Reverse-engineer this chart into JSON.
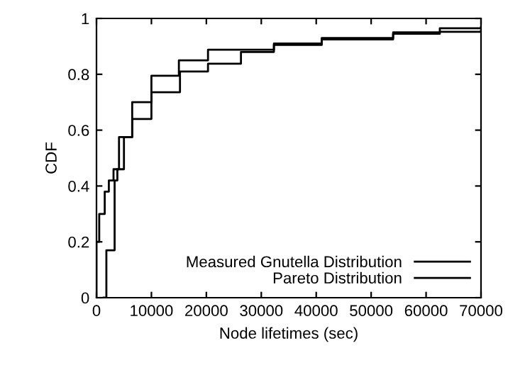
{
  "chart_data": {
    "type": "step",
    "xlabel": "Node lifetimes (sec)",
    "ylabel": "CDF",
    "series": [
      {
        "name": "Measured Gnutella Distribution",
        "color": "#000000",
        "x": [
          0,
          0,
          500,
          1500,
          2250,
          3100,
          4100,
          6500,
          10000,
          15000,
          20300,
          32300,
          41000,
          54000,
          62500,
          70000
        ],
        "values": [
          0,
          0.2,
          0.3,
          0.38,
          0.42,
          0.46,
          0.575,
          0.7,
          0.795,
          0.85,
          0.888,
          0.91,
          0.93,
          0.95,
          0.965,
          0.97
        ]
      },
      {
        "name": "Pareto Distribution",
        "color": "#000000",
        "x": [
          1300,
          1800,
          3300,
          3800,
          5000,
          6500,
          10000,
          15200,
          20300,
          26300,
          32300,
          41000,
          54000,
          62500,
          70000
        ],
        "values": [
          0,
          0.17,
          0.42,
          0.46,
          0.575,
          0.64,
          0.736,
          0.81,
          0.838,
          0.88,
          0.905,
          0.925,
          0.945,
          0.952,
          0.955
        ]
      }
    ],
    "xlim": [
      0,
      70000
    ],
    "xticks": [
      0,
      10000,
      20000,
      30000,
      40000,
      50000,
      60000,
      70000
    ],
    "ylim": [
      0,
      1
    ],
    "yticks": [
      0,
      0.2,
      0.4,
      0.6,
      0.8,
      1
    ],
    "grid": false,
    "legend": "bottom right",
    "line_style": "solid",
    "marker": "none"
  }
}
